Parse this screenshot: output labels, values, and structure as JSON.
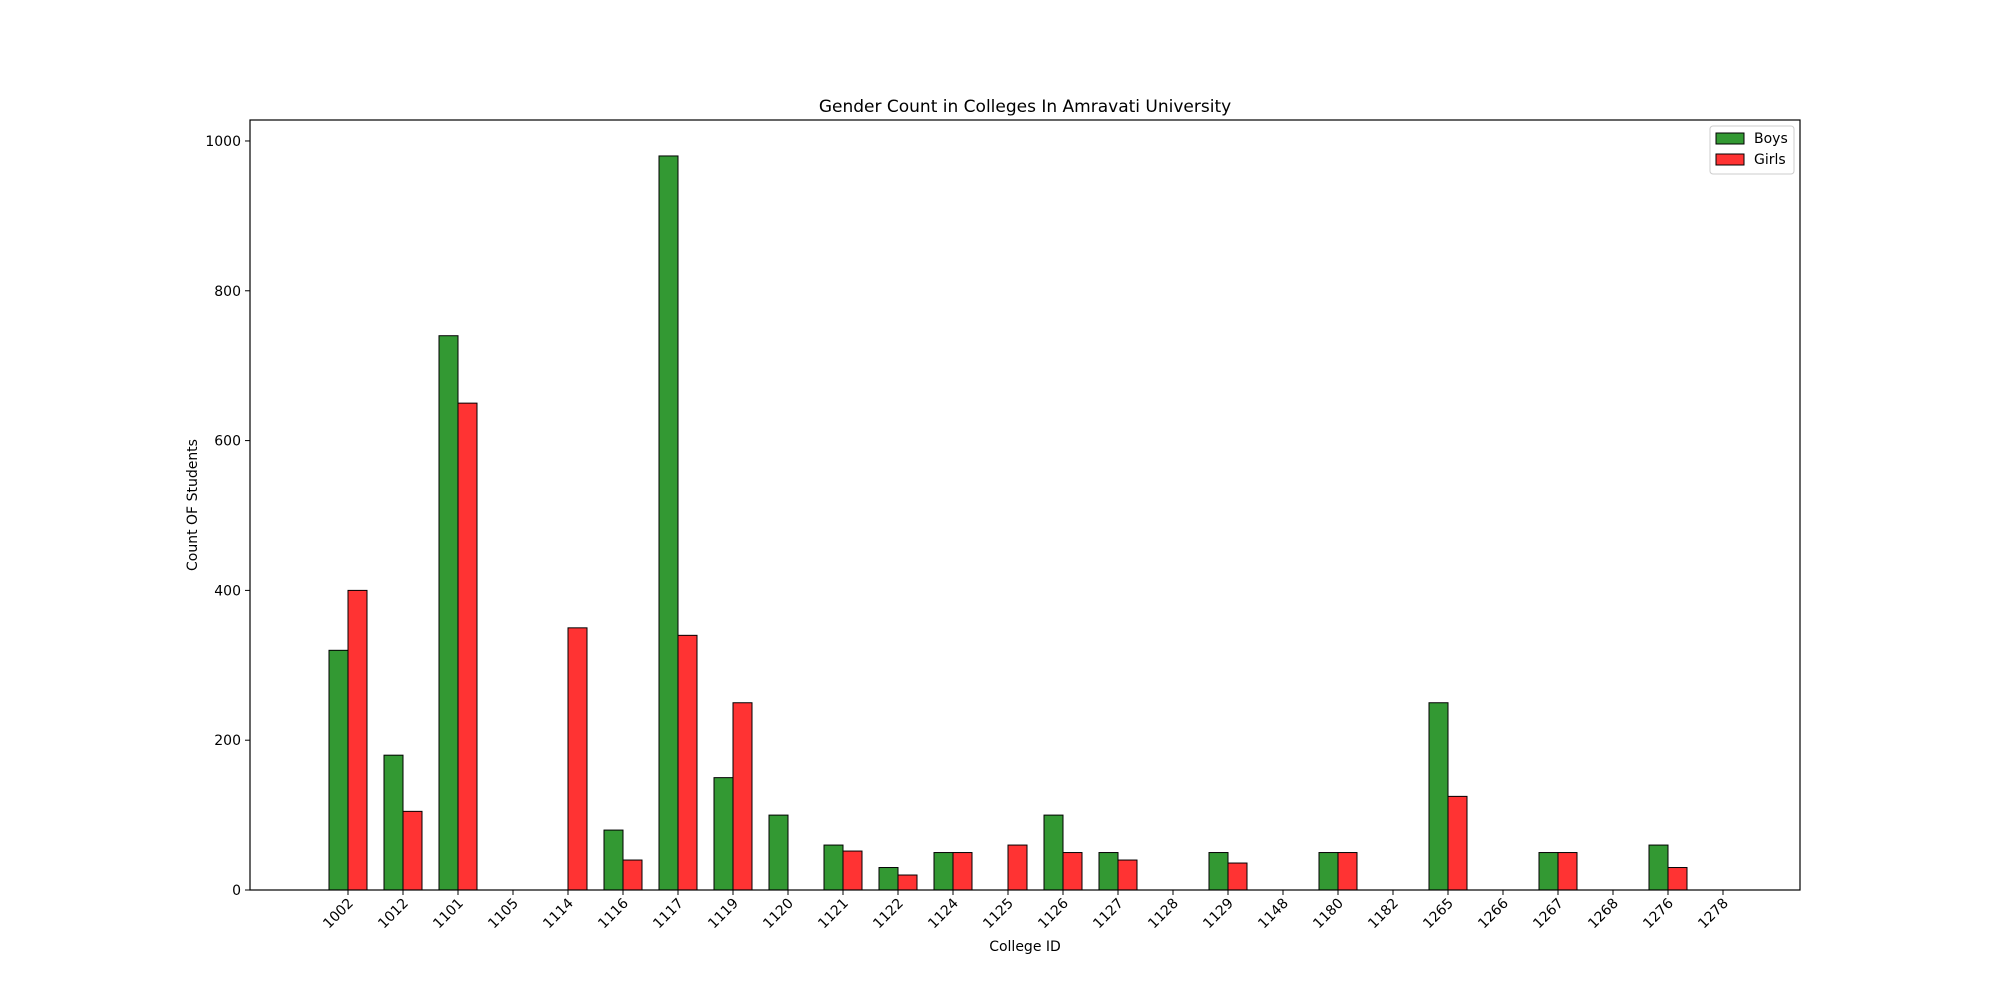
{
  "chart_data": {
    "type": "bar",
    "title": "Gender Count in Colleges In Amravati University",
    "xlabel": "College ID",
    "ylabel": "Count OF Students",
    "categories": [
      "1002",
      "1012",
      "1101",
      "1105",
      "1114",
      "1116",
      "1117",
      "1119",
      "1120",
      "1121",
      "1122",
      "1124",
      "1125",
      "1126",
      "1127",
      "1128",
      "1129",
      "1148",
      "1180",
      "1182",
      "1265",
      "1266",
      "1267",
      "1268",
      "1276",
      "1278"
    ],
    "series": [
      {
        "name": "Boys",
        "color": "#339933",
        "values": [
          320,
          180,
          740,
          0,
          0,
          80,
          980,
          150,
          100,
          60,
          30,
          50,
          0,
          100,
          50,
          0,
          50,
          0,
          50,
          0,
          250,
          0,
          50,
          0,
          60,
          0
        ]
      },
      {
        "name": "Girls",
        "color": "#ff3333",
        "values": [
          400,
          105,
          650,
          0,
          350,
          40,
          340,
          250,
          0,
          52,
          20,
          50,
          60,
          50,
          40,
          0,
          36,
          0,
          50,
          0,
          125,
          0,
          50,
          0,
          30,
          0
        ]
      }
    ],
    "yticks": [
      0,
      200,
      400,
      600,
      800,
      1000
    ],
    "ylim": [
      0,
      1028
    ],
    "grid": false,
    "legend_position": "top-right"
  }
}
